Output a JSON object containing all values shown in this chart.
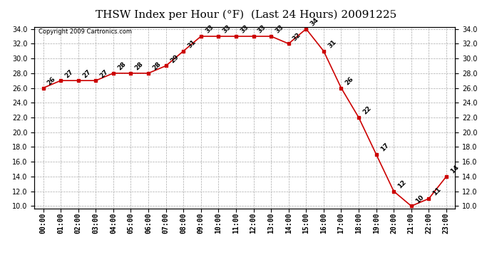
{
  "title": "THSW Index per Hour (°F)  (Last 24 Hours) 20091225",
  "copyright": "Copyright 2009 Cartronics.com",
  "hours": [
    0,
    1,
    2,
    3,
    4,
    5,
    6,
    7,
    8,
    9,
    10,
    11,
    12,
    13,
    14,
    15,
    16,
    17,
    18,
    19,
    20,
    21,
    22,
    23
  ],
  "values": [
    26,
    27,
    27,
    27,
    28,
    28,
    28,
    29,
    31,
    33,
    33,
    33,
    33,
    33,
    32,
    34,
    31,
    26,
    22,
    17,
    12,
    10,
    11,
    14
  ],
  "xlabels": [
    "00:00",
    "01:00",
    "02:00",
    "03:00",
    "04:00",
    "05:00",
    "06:00",
    "07:00",
    "08:00",
    "09:00",
    "10:00",
    "11:00",
    "12:00",
    "13:00",
    "14:00",
    "15:00",
    "16:00",
    "17:00",
    "18:00",
    "19:00",
    "20:00",
    "21:00",
    "22:00",
    "23:00"
  ],
  "ylim": [
    10.0,
    34.0
  ],
  "yticks": [
    10.0,
    12.0,
    14.0,
    16.0,
    18.0,
    20.0,
    22.0,
    24.0,
    26.0,
    28.0,
    30.0,
    32.0,
    34.0
  ],
  "line_color": "#cc0000",
  "marker_color": "#cc0000",
  "bg_color": "#ffffff",
  "grid_color": "#aaaaaa",
  "title_fontsize": 11,
  "label_fontsize": 7,
  "annotation_fontsize": 6.5
}
